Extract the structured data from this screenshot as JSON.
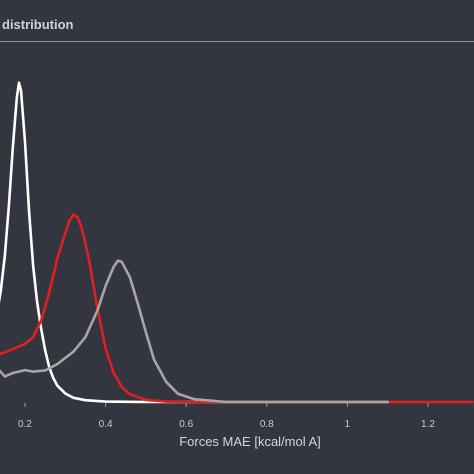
{
  "header": {
    "title": "distribution"
  },
  "chart_data": {
    "type": "line",
    "title": "distribution",
    "xlabel": "Forces MAE [kcal/mol A]",
    "ylabel": "",
    "xlim": [
      0.12,
      1.31
    ],
    "ylim": [
      0,
      1.0
    ],
    "x_ticks": [
      0.2,
      0.4,
      0.6,
      0.8,
      1,
      1.2
    ],
    "x_tick_labels": [
      "0.2",
      "0.4",
      "0.6",
      "0.8",
      "1",
      "1.2"
    ],
    "grid": false,
    "legend": "none",
    "series": [
      {
        "color": "#ffffff",
        "points": [
          [
            0.12,
            0.198
          ],
          [
            0.13,
            0.247
          ],
          [
            0.14,
            0.315
          ],
          [
            0.15,
            0.412
          ],
          [
            0.16,
            0.555
          ],
          [
            0.17,
            0.722
          ],
          [
            0.18,
            0.862
          ],
          [
            0.185,
            0.902
          ],
          [
            0.19,
            0.88
          ],
          [
            0.2,
            0.735
          ],
          [
            0.21,
            0.541
          ],
          [
            0.22,
            0.386
          ],
          [
            0.23,
            0.283
          ],
          [
            0.24,
            0.208
          ],
          [
            0.25,
            0.147
          ],
          [
            0.26,
            0.099
          ],
          [
            0.27,
            0.068
          ],
          [
            0.28,
            0.047
          ],
          [
            0.3,
            0.024
          ],
          [
            0.32,
            0.012
          ],
          [
            0.35,
            0.005
          ],
          [
            0.4,
            0.001
          ],
          [
            0.5,
            0.0
          ],
          [
            0.7,
            0.0
          ],
          [
            1.0,
            0.0
          ],
          [
            1.1,
            0.0
          ]
        ]
      },
      {
        "color": "#e02020",
        "points": [
          [
            0.12,
            0.13
          ],
          [
            0.15,
            0.14
          ],
          [
            0.2,
            0.164
          ],
          [
            0.22,
            0.183
          ],
          [
            0.24,
            0.23
          ],
          [
            0.26,
            0.309
          ],
          [
            0.28,
            0.404
          ],
          [
            0.3,
            0.478
          ],
          [
            0.31,
            0.511
          ],
          [
            0.32,
            0.529
          ],
          [
            0.33,
            0.522
          ],
          [
            0.34,
            0.495
          ],
          [
            0.35,
            0.448
          ],
          [
            0.36,
            0.394
          ],
          [
            0.37,
            0.328
          ],
          [
            0.38,
            0.264
          ],
          [
            0.4,
            0.152
          ],
          [
            0.42,
            0.082
          ],
          [
            0.44,
            0.043
          ],
          [
            0.46,
            0.022
          ],
          [
            0.5,
            0.006
          ],
          [
            0.55,
            0.001
          ],
          [
            0.6,
            0.0
          ],
          [
            0.8,
            0.0
          ],
          [
            1.0,
            0.0
          ],
          [
            1.1,
            0.0
          ],
          [
            1.31,
            0.0
          ]
        ]
      },
      {
        "color": "#a6a6a6",
        "points": [
          [
            0.12,
            0.115
          ],
          [
            0.13,
            0.097
          ],
          [
            0.15,
            0.072
          ],
          [
            0.17,
            0.082
          ],
          [
            0.2,
            0.09
          ],
          [
            0.22,
            0.086
          ],
          [
            0.25,
            0.089
          ],
          [
            0.28,
            0.107
          ],
          [
            0.32,
            0.142
          ],
          [
            0.35,
            0.183
          ],
          [
            0.38,
            0.259
          ],
          [
            0.4,
            0.328
          ],
          [
            0.42,
            0.382
          ],
          [
            0.43,
            0.399
          ],
          [
            0.44,
            0.396
          ],
          [
            0.46,
            0.353
          ],
          [
            0.48,
            0.278
          ],
          [
            0.5,
            0.197
          ],
          [
            0.52,
            0.12
          ],
          [
            0.55,
            0.057
          ],
          [
            0.58,
            0.023
          ],
          [
            0.62,
            0.008
          ],
          [
            0.7,
            0.0
          ],
          [
            0.8,
            0.0
          ],
          [
            1.0,
            0.0
          ],
          [
            1.1,
            0.0
          ]
        ]
      }
    ]
  }
}
